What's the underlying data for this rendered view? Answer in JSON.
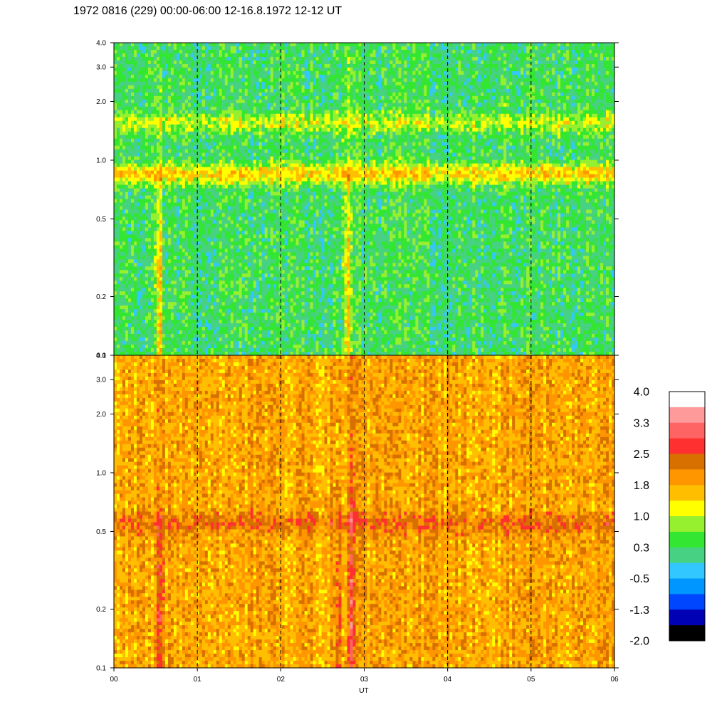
{
  "title": "1972 0816 (229) 00:00-06:00 12-16.8.1972  12-12 UT",
  "chart_data": {
    "type": "heatmap",
    "xlabel": "UT",
    "x_ticks": [
      "00",
      "01",
      "02",
      "03",
      "04",
      "05",
      "06"
    ],
    "xlim": [
      0,
      6
    ],
    "y_scale": "log",
    "y_ticks": [
      "0.1",
      "0.2",
      "0.5",
      "1.0",
      "2.0",
      "3.0",
      "4.0"
    ],
    "ylim": [
      0.1,
      4.0
    ],
    "panels": [
      {
        "name": "upper",
        "background_level": 0.3,
        "bands": [
          {
            "freq": 0.85,
            "level": 1.5,
            "time_range": [
              0,
              6
            ]
          },
          {
            "freq": 1.55,
            "level": 1.0,
            "time_range": [
              0,
              6
            ]
          }
        ],
        "vertical_features": [
          {
            "time": 0.55,
            "level": 1.8
          },
          {
            "time": 2.8,
            "level": 1.5
          }
        ]
      },
      {
        "name": "lower",
        "background_level": 1.8,
        "bands": [
          {
            "freq": 0.55,
            "level": 2.3,
            "time_range": [
              0,
              6
            ]
          }
        ],
        "vertical_features": [
          {
            "time": 0.55,
            "level": 2.8
          },
          {
            "time": 2.7,
            "level": 2.6
          },
          {
            "time": 2.85,
            "level": 2.8
          }
        ]
      }
    ],
    "dashed_hour_lines": [
      1,
      2,
      3,
      4,
      5
    ],
    "colorbar": {
      "labels": [
        "4.0",
        "3.3",
        "2.5",
        "1.8",
        "1.0",
        "0.3",
        "-0.5",
        "-1.3",
        "-2.0"
      ],
      "colors": [
        "#ffffff",
        "#ff9a9a",
        "#ff6464",
        "#ff3030",
        "#d87000",
        "#ff9600",
        "#ffbe00",
        "#ffff00",
        "#96f030",
        "#32e632",
        "#46d282",
        "#32c8ff",
        "#0096ff",
        "#0046ff",
        "#0000b4",
        "#000000"
      ]
    }
  }
}
